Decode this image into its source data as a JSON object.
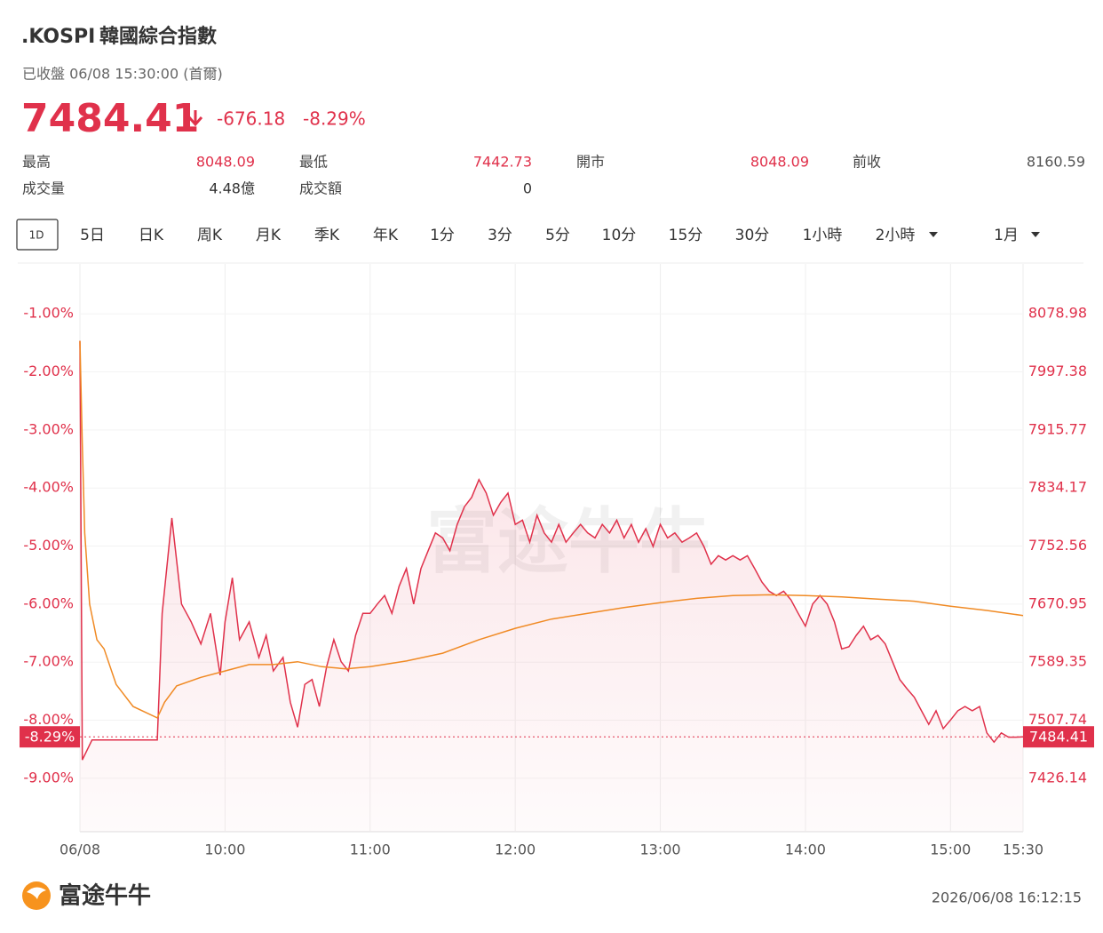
{
  "header": {
    "symbol": ".KOSPI",
    "name": "韓國綜合指數",
    "status": "已收盤 06/08 15:30:00 (首爾)"
  },
  "quote": {
    "price": 7484.41,
    "change": -676.18,
    "change_pct": "-8.29%"
  },
  "stats": [
    {
      "label": "最高",
      "value": 8048.09,
      "color": "#e0314b"
    },
    {
      "label": "最低",
      "value": 7442.73,
      "color": "#e0314b"
    },
    {
      "label": "開市",
      "value": 8048.09,
      "color": "#e0314b"
    },
    {
      "label": "前收",
      "value": 8160.59,
      "color": "#555555"
    },
    {
      "label": "成交量",
      "value": "4.48億",
      "color": "#333333"
    },
    {
      "label": "成交額",
      "value": 0,
      "color": "#333333"
    }
  ],
  "tabs": [
    "1D",
    "5日",
    "日K",
    "周K",
    "月K",
    "季K",
    "年K",
    "1分",
    "3分",
    "5分",
    "10分",
    "15分",
    "30分",
    "1小時",
    "2小時",
    "1月"
  ],
  "chart_data": {
    "type": "line",
    "xlim": [
      "09:00",
      "15:30"
    ],
    "xticks": [
      {
        "value": "09:00",
        "label": "06/08"
      },
      "10:00",
      "11:00",
      "12:00",
      "13:00",
      "14:00",
      "15:00",
      "15:30"
    ],
    "ylim": [
      -9.92,
      -0.14
    ],
    "yticks": [
      {
        "value": -1,
        "label": "-1.00%"
      },
      {
        "value": -2,
        "label": "-2.00%"
      },
      {
        "value": -3,
        "label": "-3.00%"
      },
      {
        "value": -4,
        "label": "-4.00%"
      },
      {
        "value": -5,
        "label": "-5.00%"
      },
      {
        "value": -6,
        "label": "-6.00%"
      },
      {
        "value": -7,
        "label": "-7.00%"
      },
      {
        "value": -8,
        "label": "-8.00%"
      },
      {
        "value": -9,
        "label": "-9.00%"
      }
    ],
    "y2lim": [
      7351.06,
      8149.17
    ],
    "y2ticks": [
      8078.98,
      7997.38,
      7915.77,
      7834.17,
      7752.56,
      7670.95,
      7589.35,
      7507.74,
      7426.14
    ],
    "grid": true,
    "series": [
      {
        "color": "#e0314b",
        "axis": "y2",
        "fill": true,
        "x": [
          "09:00",
          "09:01",
          "09:05",
          "09:32",
          "09:34",
          "09:38",
          "09:42",
          "09:46",
          "09:50",
          "09:54",
          "09:58",
          "10:00",
          "10:03",
          "10:06",
          "10:10",
          "10:14",
          "10:17",
          "10:20",
          "10:24",
          "10:27",
          "10:30",
          "10:33",
          "10:36",
          "10:39",
          "10:42",
          "10:45",
          "10:48",
          "10:51",
          "10:54",
          "10:57",
          "11:00",
          "11:03",
          "11:06",
          "11:09",
          "11:12",
          "11:15",
          "11:18",
          "11:21",
          "11:24",
          "11:27",
          "11:30",
          "11:33",
          "11:36",
          "11:39",
          "11:42",
          "11:45",
          "11:48",
          "11:51",
          "11:54",
          "11:57",
          "12:00",
          "12:03",
          "12:06",
          "12:09",
          "12:12",
          "12:15",
          "12:18",
          "12:21",
          "12:24",
          "12:27",
          "12:30",
          "12:33",
          "12:36",
          "12:39",
          "12:42",
          "12:45",
          "12:48",
          "12:51",
          "12:54",
          "12:57",
          "13:00",
          "13:03",
          "13:06",
          "13:09",
          "13:12",
          "13:15",
          "13:18",
          "13:21",
          "13:24",
          "13:27",
          "13:30",
          "13:33",
          "13:36",
          "13:39",
          "13:42",
          "13:45",
          "13:48",
          "13:51",
          "13:54",
          "13:57",
          "14:00",
          "14:03",
          "14:06",
          "14:09",
          "14:12",
          "14:15",
          "14:18",
          "14:21",
          "14:24",
          "14:27",
          "14:30",
          "14:33",
          "14:36",
          "14:39",
          "14:42",
          "14:45",
          "14:48",
          "14:51",
          "14:54",
          "14:57",
          "15:00",
          "15:03",
          "15:06",
          "15:09",
          "15:12",
          "15:15",
          "15:18",
          "15:21",
          "15:24",
          "15:27",
          "15:30"
        ],
        "values": [
          8041,
          7452,
          7480,
          7480,
          7658,
          7792,
          7671,
          7646,
          7615,
          7658,
          7571,
          7646,
          7708,
          7621,
          7646,
          7596,
          7627,
          7577,
          7596,
          7533,
          7498,
          7558,
          7565,
          7527,
          7583,
          7621,
          7590,
          7577,
          7627,
          7658,
          7658,
          7671,
          7683,
          7658,
          7696,
          7721,
          7671,
          7721,
          7746,
          7771,
          7764,
          7746,
          7783,
          7808,
          7821,
          7846,
          7827,
          7796,
          7814,
          7827,
          7783,
          7789,
          7758,
          7796,
          7771,
          7758,
          7783,
          7758,
          7771,
          7783,
          7771,
          7764,
          7783,
          7771,
          7789,
          7764,
          7783,
          7758,
          7777,
          7752,
          7783,
          7764,
          7771,
          7758,
          7764,
          7771,
          7752,
          7727,
          7739,
          7733,
          7739,
          7733,
          7739,
          7721,
          7702,
          7689,
          7683,
          7689,
          7677,
          7658,
          7640,
          7671,
          7683,
          7671,
          7646,
          7608,
          7611,
          7627,
          7640,
          7621,
          7627,
          7615,
          7590,
          7565,
          7552,
          7540,
          7521,
          7502,
          7521,
          7496,
          7508,
          7521,
          7527,
          7521,
          7527,
          7490,
          7477,
          7490,
          7484,
          7484,
          7484.41
        ]
      },
      {
        "color": "#f08a24",
        "axis": "y2",
        "fill": false,
        "x": [
          "09:00",
          "09:01",
          "09:02",
          "09:04",
          "09:07",
          "09:10",
          "09:15",
          "09:22",
          "09:32",
          "09:35",
          "09:40",
          "09:50",
          "10:00",
          "10:10",
          "10:20",
          "10:30",
          "10:40",
          "10:50",
          "11:00",
          "11:15",
          "11:30",
          "11:45",
          "12:00",
          "12:15",
          "12:30",
          "12:45",
          "13:00",
          "13:15",
          "13:30",
          "13:45",
          "14:00",
          "14:15",
          "14:30",
          "14:45",
          "15:00",
          "15:15",
          "15:30"
        ],
        "values": [
          8041,
          7895,
          7771,
          7671,
          7621,
          7608,
          7558,
          7527,
          7511,
          7533,
          7556,
          7568,
          7577,
          7586,
          7586,
          7590,
          7583,
          7580,
          7583,
          7591,
          7602,
          7621,
          7637,
          7650,
          7658,
          7666,
          7673,
          7679,
          7683,
          7684,
          7683,
          7681,
          7678,
          7675,
          7668,
          7662,
          7655
        ]
      }
    ]
  },
  "footer": {
    "logo": "富途牛牛",
    "timestamp": "2026/06/08 16:12:15"
  }
}
